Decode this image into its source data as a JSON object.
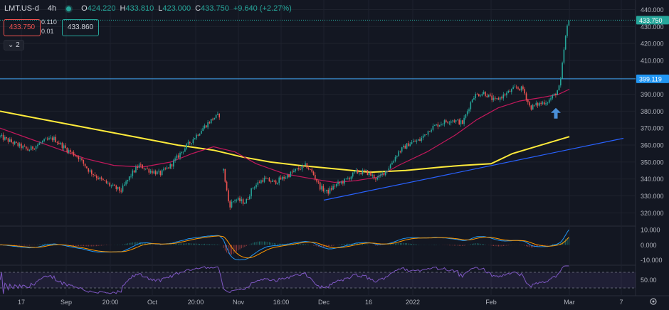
{
  "header": {
    "symbol": "LMT.US-d",
    "timeframe": "4h",
    "open_label": "O",
    "open": "424.220",
    "high_label": "H",
    "high": "433.810",
    "low_label": "L",
    "low": "423.000",
    "close_label": "C",
    "close": "433.750",
    "change": "+9.640 (+2.27%)"
  },
  "quote": {
    "sell": "433.750",
    "buy": "433.860",
    "spread_top": "0.110",
    "spread_bottom": "0.01"
  },
  "indicators_toggle": {
    "count": "2"
  },
  "colors": {
    "background": "#131722",
    "grid": "#1e222d",
    "up": "#26a69a",
    "down": "#ef5350",
    "ma_fast": "#c2185b",
    "ma_slow": "#ffeb3b",
    "trend": "#2962ff",
    "resistance": "#42a5f5",
    "macd": "#2196f3",
    "signal": "#ff9800",
    "rsi": "#7e57c2",
    "arrow": "#4a90d9"
  },
  "chart_data": {
    "type": "candlestick",
    "price_axis": {
      "ticks": [
        "440.000",
        "430.000",
        "420.000",
        "410.000",
        "400.000",
        "390.000",
        "380.000",
        "370.000",
        "360.000",
        "350.000",
        "340.000",
        "330.000",
        "320.000"
      ],
      "range": [
        313,
        444
      ]
    },
    "last_price_label": "433.750",
    "resistance": {
      "value": 399.119,
      "label": "399.119"
    },
    "time_axis": [
      "17",
      "Sep",
      "20:00",
      "Oct",
      "20:00",
      "Nov",
      "16:00",
      "Dec",
      "16",
      "2022",
      "Feb",
      "Mar",
      "7"
    ],
    "segments": [
      {
        "from": 0,
        "to": 310,
        "anchors": [
          [
            0,
            365
          ],
          [
            20,
            361
          ],
          [
            40,
            357
          ],
          [
            60,
            362
          ],
          [
            75,
            364
          ],
          [
            95,
            357
          ],
          [
            110,
            353
          ],
          [
            125,
            345
          ],
          [
            140,
            340
          ],
          [
            160,
            335
          ],
          [
            170,
            333
          ],
          [
            185,
            343
          ],
          [
            195,
            348
          ],
          [
            210,
            345
          ],
          [
            225,
            343
          ],
          [
            240,
            348
          ],
          [
            255,
            356
          ],
          [
            270,
            363
          ],
          [
            285,
            370
          ],
          [
            300,
            376
          ],
          [
            310,
            378
          ]
        ]
      },
      {
        "from": 314,
        "to": 800,
        "anchors": [
          [
            314,
            345
          ],
          [
            322,
            324
          ],
          [
            330,
            328
          ],
          [
            345,
            326
          ],
          [
            355,
            335
          ],
          [
            370,
            340
          ],
          [
            385,
            338
          ],
          [
            400,
            341
          ],
          [
            415,
            345
          ],
          [
            430,
            348
          ],
          [
            440,
            343
          ],
          [
            450,
            335
          ],
          [
            460,
            332
          ],
          [
            470,
            336
          ],
          [
            485,
            339
          ],
          [
            500,
            344
          ],
          [
            515,
            344
          ],
          [
            530,
            340
          ],
          [
            545,
            346
          ],
          [
            560,
            356
          ],
          [
            575,
            361
          ],
          [
            590,
            363
          ],
          [
            605,
            370
          ],
          [
            620,
            373
          ],
          [
            635,
            375
          ],
          [
            650,
            373
          ],
          [
            665,
            389
          ],
          [
            680,
            391
          ],
          [
            695,
            386
          ],
          [
            710,
            390
          ],
          [
            725,
            394
          ],
          [
            735,
            393
          ],
          [
            745,
            382
          ],
          [
            755,
            384
          ],
          [
            770,
            386
          ],
          [
            780,
            390
          ],
          [
            787,
            395
          ],
          [
            792,
            415
          ],
          [
            796,
            428
          ],
          [
            800,
            434
          ]
        ]
      }
    ],
    "ma_slow": [
      [
        0,
        380
      ],
      [
        50,
        376
      ],
      [
        100,
        372
      ],
      [
        150,
        368
      ],
      [
        200,
        364
      ],
      [
        250,
        360
      ],
      [
        300,
        357
      ],
      [
        340,
        353
      ],
      [
        380,
        350
      ],
      [
        420,
        348
      ],
      [
        470,
        346
      ],
      [
        520,
        344
      ],
      [
        570,
        345
      ],
      [
        620,
        347
      ],
      [
        650,
        348
      ],
      [
        690,
        349
      ],
      [
        720,
        355
      ],
      [
        760,
        360
      ],
      [
        800,
        365
      ]
    ],
    "ma_fast": [
      [
        0,
        370
      ],
      [
        40,
        364
      ],
      [
        80,
        358
      ],
      [
        120,
        352
      ],
      [
        160,
        348
      ],
      [
        200,
        347
      ],
      [
        240,
        350
      ],
      [
        270,
        355
      ],
      [
        300,
        359
      ],
      [
        330,
        356
      ],
      [
        360,
        349
      ],
      [
        400,
        343
      ],
      [
        440,
        340
      ],
      [
        470,
        338
      ],
      [
        500,
        339
      ],
      [
        530,
        341
      ],
      [
        560,
        348
      ],
      [
        600,
        356
      ],
      [
        640,
        366
      ],
      [
        670,
        375
      ],
      [
        700,
        382
      ],
      [
        730,
        386
      ],
      [
        760,
        388
      ],
      [
        785,
        390
      ],
      [
        800,
        393
      ]
    ],
    "trendline": [
      [
        455,
        327.5
      ],
      [
        876,
        364
      ]
    ],
    "arrow": {
      "x": 781,
      "price": 379
    },
    "macd": {
      "ticks": [
        "10.000",
        "0.000",
        "-10.000"
      ],
      "range": [
        -13,
        12
      ]
    },
    "rsi": {
      "ticks": [
        "50.00"
      ]
    }
  }
}
